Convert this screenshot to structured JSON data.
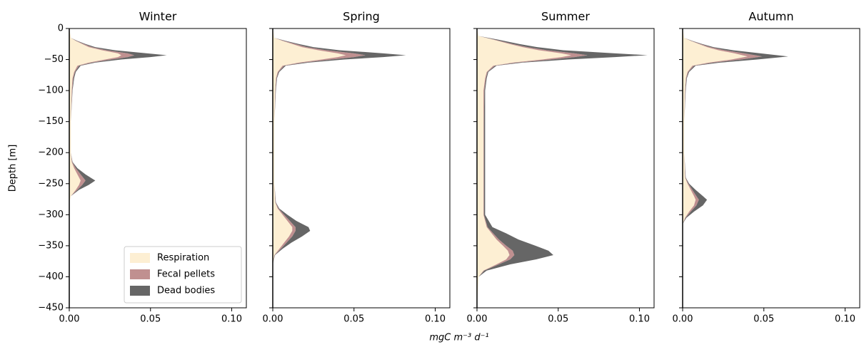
{
  "xlabel": "mgC m⁻³ d⁻¹",
  "chart_data": [
    {
      "type": "area",
      "title": "Winter",
      "ylabel": "Depth [m]",
      "legend": "lower right",
      "y": [
        0,
        -15,
        -20,
        -25,
        -30,
        -35,
        -40,
        -43,
        -46,
        -50,
        -55,
        -60,
        -70,
        -80,
        -100,
        -150,
        -200,
        -215,
        -225,
        -235,
        -245,
        -252,
        -260,
        -270,
        -280,
        -300,
        -450
      ],
      "series": [
        {
          "name": "Respiration",
          "color": "#fdefd3",
          "values": [
            0,
            0.001,
            0.004,
            0.008,
            0.012,
            0.02,
            0.03,
            0.032,
            0.03,
            0.022,
            0.012,
            0.005,
            0.003,
            0.002,
            0.0015,
            0.001,
            0.001,
            0.0015,
            0.003,
            0.005,
            0.007,
            0.006,
            0.004,
            0.001,
            0,
            0,
            0
          ]
        },
        {
          "name": "Fecal pellets",
          "color": "#c09090",
          "values": [
            0,
            0,
            0.0005,
            0.001,
            0.002,
            0.003,
            0.006,
            0.008,
            0.006,
            0.004,
            0.002,
            0.001,
            0.0005,
            0.0005,
            0.0003,
            0,
            0,
            0.0003,
            0.001,
            0.002,
            0.003,
            0.002,
            0.001,
            0,
            0,
            0,
            0
          ]
        },
        {
          "name": "Dead bodies",
          "color": "#666666",
          "values": [
            0,
            0,
            0.0005,
            0.001,
            0.002,
            0.005,
            0.012,
            0.02,
            0.014,
            0.006,
            0.002,
            0.001,
            0.0005,
            0.0005,
            0.0002,
            0,
            0,
            0.0002,
            0.001,
            0.003,
            0.006,
            0.004,
            0.001,
            0,
            0,
            0,
            0
          ]
        }
      ],
      "xlim": [
        0,
        0.109
      ],
      "xticks": [
        {
          "value": 0,
          "label": "0.00"
        },
        {
          "value": 0.05,
          "label": "0.05"
        },
        {
          "value": 0.1,
          "label": "0.10"
        }
      ],
      "ylim": [
        -450,
        0
      ],
      "yticks": [
        {
          "value": 0,
          "label": "0"
        },
        {
          "value": -50,
          "label": "−50"
        },
        {
          "value": -100,
          "label": "−100"
        },
        {
          "value": -150,
          "label": "−150"
        },
        {
          "value": -200,
          "label": "−200"
        },
        {
          "value": -250,
          "label": "−250"
        },
        {
          "value": -300,
          "label": "−300"
        },
        {
          "value": -350,
          "label": "−350"
        },
        {
          "value": -400,
          "label": "−400"
        },
        {
          "value": -450,
          "label": "−450"
        }
      ]
    },
    {
      "type": "area",
      "title": "Spring",
      "y": [
        0,
        -15,
        -20,
        -25,
        -30,
        -35,
        -40,
        -43,
        -46,
        -50,
        -55,
        -60,
        -70,
        -80,
        -100,
        -150,
        -200,
        -250,
        -280,
        -290,
        -300,
        -310,
        -320,
        -326,
        -335,
        -345,
        -355,
        -365,
        -380,
        -450
      ],
      "series": [
        {
          "color": "#fdefd3",
          "values": [
            0,
            0.001,
            0.006,
            0.012,
            0.018,
            0.028,
            0.04,
            0.045,
            0.04,
            0.03,
            0.016,
            0.006,
            0.003,
            0.002,
            0.0015,
            0.001,
            0.001,
            0.001,
            0.0015,
            0.003,
            0.006,
            0.009,
            0.012,
            0.012,
            0.01,
            0.007,
            0.004,
            0.001,
            0,
            0
          ]
        },
        {
          "color": "#c09090",
          "values": [
            0,
            0,
            0.001,
            0.002,
            0.003,
            0.005,
            0.01,
            0.012,
            0.01,
            0.006,
            0.003,
            0.001,
            0.0005,
            0.0003,
            0.0002,
            0,
            0,
            0,
            0.0002,
            0.0005,
            0.001,
            0.0015,
            0.002,
            0.002,
            0.002,
            0.0015,
            0.001,
            0.0002,
            0,
            0
          ]
        },
        {
          "color": "#666666",
          "values": [
            0,
            0,
            0.001,
            0.002,
            0.004,
            0.008,
            0.018,
            0.025,
            0.018,
            0.008,
            0.003,
            0.001,
            0.0005,
            0.0003,
            0.0002,
            0,
            0,
            0,
            0.0002,
            0.0005,
            0.002,
            0.004,
            0.008,
            0.009,
            0.006,
            0.003,
            0.001,
            0.0002,
            0,
            0
          ]
        }
      ],
      "xlim": [
        0,
        0.109
      ],
      "xticks": [
        {
          "value": 0,
          "label": "0.00"
        },
        {
          "value": 0.05,
          "label": "0.05"
        },
        {
          "value": 0.1,
          "label": "0.10"
        }
      ],
      "ylim": [
        -450,
        0
      ],
      "yticks": [
        0,
        -50,
        -100,
        -150,
        -200,
        -250,
        -300,
        -350,
        -400,
        -450
      ]
    },
    {
      "type": "area",
      "title": "Summer",
      "y": [
        0,
        -12,
        -18,
        -25,
        -30,
        -35,
        -40,
        -43,
        -46,
        -50,
        -55,
        -60,
        -70,
        -80,
        -100,
        -150,
        -200,
        -250,
        -300,
        -320,
        -330,
        -340,
        -350,
        -358,
        -365,
        -372,
        -380,
        -390,
        -400,
        -450
      ],
      "series": [
        {
          "color": "#fdefd3",
          "values": [
            0,
            0.001,
            0.01,
            0.02,
            0.028,
            0.038,
            0.052,
            0.058,
            0.052,
            0.04,
            0.022,
            0.01,
            0.006,
            0.005,
            0.004,
            0.004,
            0.004,
            0.004,
            0.004,
            0.006,
            0.009,
            0.012,
            0.016,
            0.019,
            0.02,
            0.018,
            0.012,
            0.004,
            0.001,
            0
          ]
        },
        {
          "color": "#c09090",
          "values": [
            0,
            0,
            0.001,
            0.002,
            0.003,
            0.005,
            0.008,
            0.01,
            0.008,
            0.006,
            0.003,
            0.001,
            0.0005,
            0.0005,
            0.0005,
            0.0003,
            0.0003,
            0.0003,
            0.0003,
            0.0005,
            0.001,
            0.0015,
            0.002,
            0.003,
            0.003,
            0.0025,
            0.0015,
            0.0005,
            0,
            0
          ]
        },
        {
          "color": "#666666",
          "values": [
            0,
            0,
            0.002,
            0.004,
            0.006,
            0.01,
            0.025,
            0.037,
            0.025,
            0.01,
            0.003,
            0.001,
            0.0005,
            0.0005,
            0.0005,
            0.0007,
            0.0007,
            0.0007,
            0.0007,
            0.003,
            0.008,
            0.012,
            0.018,
            0.022,
            0.024,
            0.016,
            0.007,
            0.0015,
            0,
            0
          ]
        }
      ],
      "xlim": [
        0,
        0.109
      ],
      "xticks": [
        {
          "value": 0,
          "label": "0.00"
        },
        {
          "value": 0.05,
          "label": "0.05"
        },
        {
          "value": 0.1,
          "label": "0.10"
        }
      ],
      "ylim": [
        -450,
        0
      ],
      "yticks": [
        0,
        -50,
        -100,
        -150,
        -200,
        -250,
        -300,
        -350,
        -400,
        -450
      ]
    },
    {
      "type": "area",
      "title": "Autumn",
      "y": [
        0,
        -15,
        -20,
        -25,
        -30,
        -35,
        -40,
        -45,
        -50,
        -55,
        -60,
        -70,
        -80,
        -100,
        -150,
        -200,
        -240,
        -250,
        -260,
        -270,
        -276,
        -285,
        -295,
        -305,
        -315,
        -450
      ],
      "series": [
        {
          "color": "#fdefd3",
          "values": [
            0,
            0.001,
            0.005,
            0.01,
            0.015,
            0.022,
            0.032,
            0.04,
            0.03,
            0.016,
            0.006,
            0.003,
            0.002,
            0.0015,
            0.001,
            0.001,
            0.0015,
            0.003,
            0.005,
            0.007,
            0.008,
            0.007,
            0.004,
            0.0015,
            0,
            0
          ]
        },
        {
          "color": "#c09090",
          "values": [
            0,
            0,
            0.0005,
            0.001,
            0.002,
            0.004,
            0.006,
            0.009,
            0.006,
            0.003,
            0.001,
            0.0005,
            0.0003,
            0.0002,
            0,
            0,
            0.0002,
            0.0005,
            0.001,
            0.0015,
            0.002,
            0.0015,
            0.001,
            0.0003,
            0,
            0
          ]
        },
        {
          "color": "#666666",
          "values": [
            0,
            0,
            0.0005,
            0.001,
            0.002,
            0.005,
            0.01,
            0.016,
            0.01,
            0.004,
            0.001,
            0.0005,
            0.0003,
            0.0002,
            0,
            0,
            0.0002,
            0.0005,
            0.002,
            0.004,
            0.005,
            0.004,
            0.002,
            0.0005,
            0,
            0
          ]
        }
      ],
      "xlim": [
        0,
        0.109
      ],
      "xticks": [
        {
          "value": 0,
          "label": "0.00"
        },
        {
          "value": 0.05,
          "label": "0.05"
        },
        {
          "value": 0.1,
          "label": "0.10"
        }
      ],
      "ylim": [
        -450,
        0
      ],
      "yticks": [
        0,
        -50,
        -100,
        -150,
        -200,
        -250,
        -300,
        -350,
        -400,
        -450
      ]
    }
  ]
}
